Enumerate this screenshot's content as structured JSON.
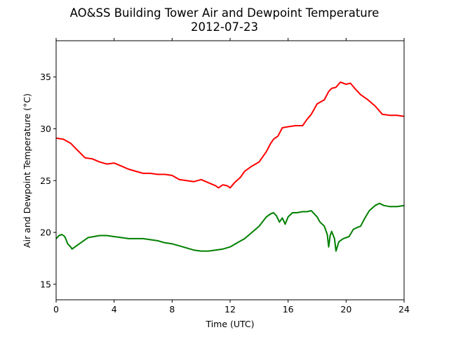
{
  "chart_data": {
    "type": "line",
    "title": "AO&SS Building Tower Air and Dewpoint Temperature",
    "subtitle": "2012-07-23",
    "xlabel": "Time (UTC)",
    "ylabel": "Air and Dewpoint Temperature (°C)",
    "xlim": [
      0,
      24
    ],
    "ylim": [
      13.5,
      38.5
    ],
    "xticks": [
      0,
      4,
      8,
      12,
      16,
      20,
      24
    ],
    "yticks": [
      15,
      20,
      25,
      30,
      35
    ],
    "grid": false,
    "legend": "none",
    "series": [
      {
        "color": "#ff0000",
        "x": [
          0.0,
          0.5,
          1.0,
          1.5,
          2.0,
          2.5,
          3.0,
          3.5,
          4.0,
          4.5,
          5.0,
          5.5,
          6.0,
          6.5,
          7.0,
          7.5,
          8.0,
          8.5,
          9.0,
          9.5,
          10.0,
          10.5,
          11.0,
          11.2,
          11.5,
          11.8,
          12.0,
          12.3,
          12.7,
          13.0,
          13.5,
          14.0,
          14.5,
          14.8,
          15.0,
          15.3,
          15.6,
          16.0,
          16.5,
          17.0,
          17.3,
          17.6,
          18.0,
          18.5,
          18.8,
          19.0,
          19.3,
          19.6,
          20.0,
          20.3,
          20.6,
          21.0,
          21.5,
          22.0,
          22.5,
          23.0,
          23.5,
          24.0
        ],
        "y": [
          29.1,
          29.0,
          28.6,
          27.9,
          27.2,
          27.1,
          26.8,
          26.6,
          26.7,
          26.4,
          26.1,
          25.9,
          25.7,
          25.7,
          25.6,
          25.6,
          25.5,
          25.1,
          25.0,
          24.9,
          25.1,
          24.8,
          24.5,
          24.3,
          24.6,
          24.5,
          24.3,
          24.8,
          25.3,
          25.9,
          26.4,
          26.8,
          27.8,
          28.6,
          29.0,
          29.3,
          30.1,
          30.2,
          30.3,
          30.3,
          30.9,
          31.4,
          32.4,
          32.8,
          33.6,
          33.9,
          34.0,
          34.5,
          34.3,
          34.4,
          33.9,
          33.3,
          32.8,
          32.2,
          31.4,
          31.3,
          31.3,
          31.2
        ]
      },
      {
        "color": "#008000",
        "x": [
          0.0,
          0.2,
          0.4,
          0.6,
          0.8,
          1.0,
          1.1,
          1.4,
          1.8,
          2.2,
          2.6,
          3.0,
          3.5,
          4.0,
          4.5,
          5.0,
          5.5,
          6.0,
          6.5,
          7.0,
          7.5,
          8.0,
          8.5,
          9.0,
          9.5,
          10.0,
          10.5,
          11.0,
          11.5,
          12.0,
          12.5,
          13.0,
          13.5,
          14.0,
          14.5,
          14.8,
          15.0,
          15.2,
          15.4,
          15.6,
          15.8,
          16.0,
          16.3,
          16.6,
          17.0,
          17.3,
          17.6,
          18.0,
          18.2,
          18.5,
          18.7,
          18.8,
          18.9,
          19.0,
          19.2,
          19.3,
          19.5,
          19.8,
          20.2,
          20.5,
          20.8,
          21.0,
          21.3,
          21.6,
          22.0,
          22.3,
          22.6,
          23.0,
          23.5,
          24.0
        ],
        "y": [
          19.4,
          19.7,
          19.8,
          19.6,
          18.9,
          18.6,
          18.4,
          18.7,
          19.1,
          19.5,
          19.6,
          19.7,
          19.7,
          19.6,
          19.5,
          19.4,
          19.4,
          19.4,
          19.3,
          19.2,
          19.0,
          18.9,
          18.7,
          18.5,
          18.3,
          18.2,
          18.2,
          18.3,
          18.4,
          18.6,
          19.0,
          19.4,
          20.0,
          20.6,
          21.5,
          21.8,
          21.9,
          21.6,
          21.0,
          21.4,
          20.8,
          21.5,
          21.9,
          21.9,
          22.0,
          22.0,
          22.1,
          21.5,
          21.0,
          20.6,
          19.8,
          18.6,
          19.7,
          20.1,
          19.4,
          18.2,
          19.1,
          19.4,
          19.6,
          20.3,
          20.5,
          20.6,
          21.4,
          22.1,
          22.6,
          22.8,
          22.6,
          22.5,
          22.5,
          22.6
        ]
      }
    ]
  }
}
